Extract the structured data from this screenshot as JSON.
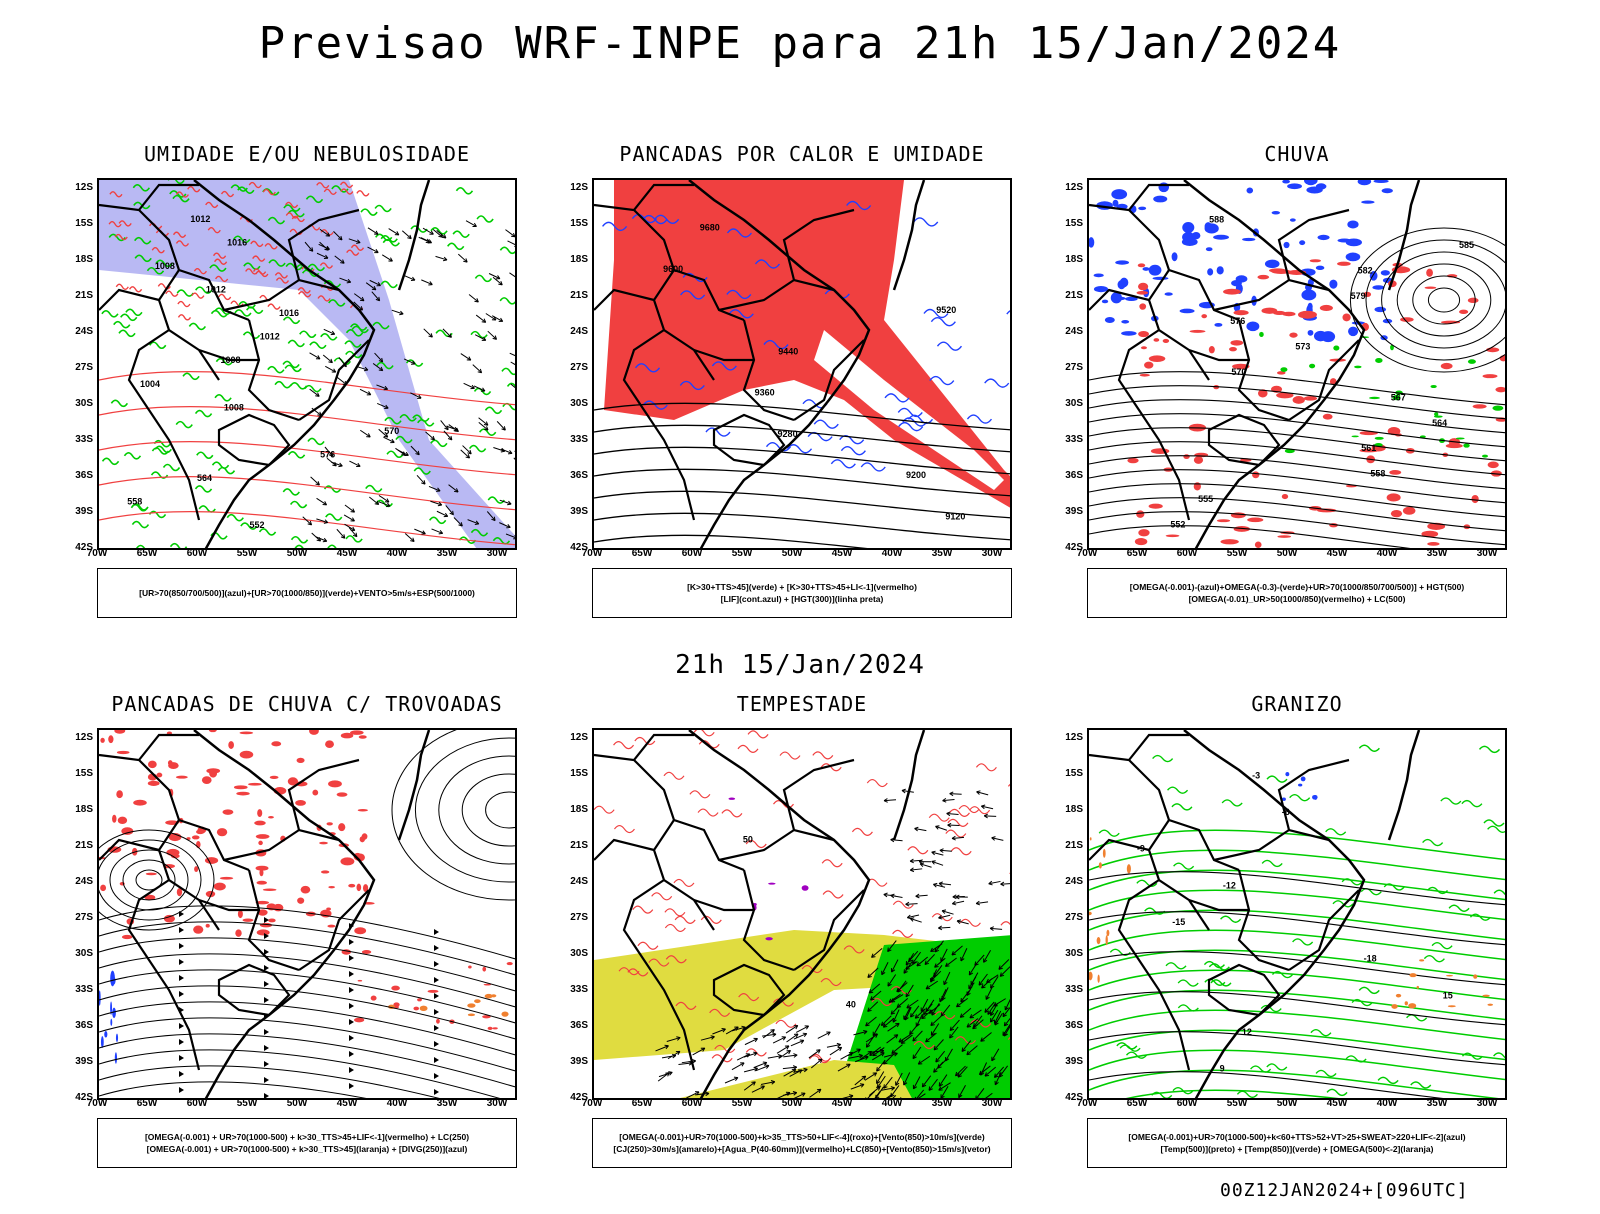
{
  "title": "Previsao WRF-INPE  para 21h 15/Jan/2024",
  "mid_title": "21h 15/Jan/2024",
  "footer": "00Z12JAN2024+[096UTC]",
  "lat_labels": [
    "12S",
    "15S",
    "18S",
    "21S",
    "24S",
    "27S",
    "30S",
    "33S",
    "36S",
    "39S",
    "42S"
  ],
  "lon_labels": [
    "70W",
    "65W",
    "60W",
    "55W",
    "50W",
    "45W",
    "40W",
    "35W",
    "30W"
  ],
  "colors": {
    "red": "#f04040",
    "green": "#00cc00",
    "blue": "#2040ff",
    "lavender": "#a8a8f0",
    "yellow": "#e0dc40",
    "orange": "#f08030",
    "purple": "#a000c0"
  },
  "panels": [
    {
      "title": "UMIDADE E/OU NEBULOSIDADE",
      "legend": [
        "[UR>70(850/700/500)](azul)+[UR>70(1000/850)](verde)+VENTO>5m/s+ESP(500/1000)"
      ]
    },
    {
      "title": "PANCADAS POR CALOR E UMIDADE",
      "legend": [
        "[K>30+TTS>45](verde) + [K>30+TTS>45+LI<-1](vermelho)",
        "[LIF](cont.azul) + [HGT(300)](linha preta)"
      ]
    },
    {
      "title": "CHUVA",
      "legend": [
        "[OMEGA(-0.001)-(azul)+OMEGA(-0.3)-(verde)+UR>70(1000/850/700/500)] + HGT(500)",
        "[OMEGA(-0.01)_UR>50(1000/850)(vermelho) + LC(500)"
      ]
    },
    {
      "title": "PANCADAS DE CHUVA C/ TROVOADAS",
      "legend": [
        "[OMEGA(-0.001) + UR>70(1000-500) + k>30_TTS>45+LIF<-1](vermelho) + LC(250)",
        "[OMEGA(-0.001) + UR>70(1000-500) + k>30_TTS>45](laranja) + [DIVG(250)](azul)"
      ]
    },
    {
      "title": "TEMPESTADE",
      "legend": [
        "[OMEGA(-0.001)+UR>70(1000-500)+k>35_TTS>50+LIF<-4](roxo)+[Vento(850)>10m/s](verde)",
        "[CJ(250)>30m/s](amarelo)+[Agua_P(40-60mm)](vermelho)+LC(850)+[Vento(850)>15m/s](vetor)"
      ]
    },
    {
      "title": "GRANIZO",
      "legend": [
        "[OMEGA(-0.001)+UR>70(1000-500)+k<60+TTS>52+VT>25+SWEAT>220+LIF<-2](azul)",
        "[Temp(500)](preto) + [Temp(850)](verde) + [OMEGA(500)<-2](laranja)"
      ]
    }
  ],
  "contour_labels": {
    "p1": [
      "1012",
      "1016",
      "1008",
      "1012",
      "1016",
      "1012",
      "1008",
      "1004",
      "1008",
      "570",
      "576",
      "564",
      "558",
      "552"
    ],
    "p2": [
      "9680",
      "9600",
      "9520",
      "9440",
      "9360",
      "9280",
      "9200",
      "9120"
    ],
    "p3": [
      "588",
      "585",
      "582",
      "579",
      "576",
      "573",
      "570",
      "567",
      "564",
      "561",
      "558",
      "555",
      "552"
    ],
    "p5": [
      "50",
      "40"
    ],
    "p6": [
      "-3",
      "-6",
      "-9",
      "-12",
      "-15",
      "-18",
      "15",
      "12",
      "9"
    ]
  }
}
